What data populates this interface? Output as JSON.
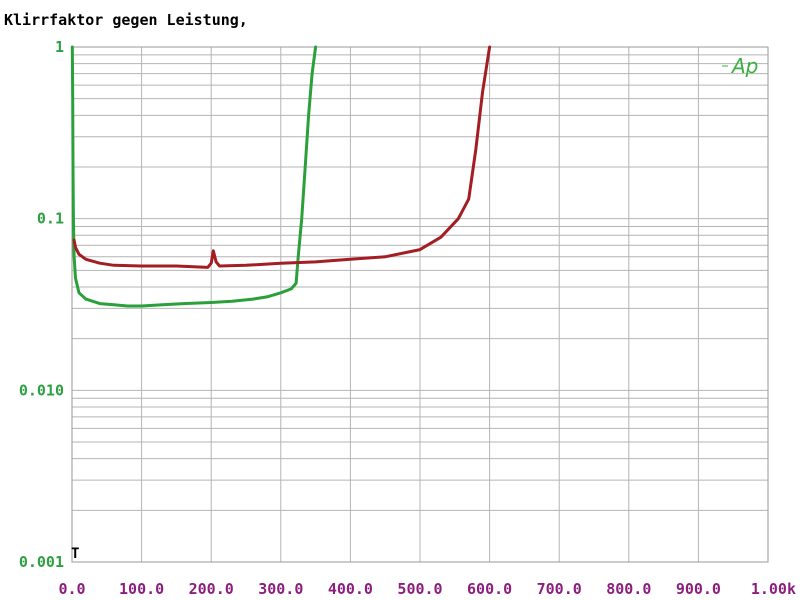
{
  "chart_data": {
    "type": "line",
    "title": "Klirrfaktor gegen Leistung,",
    "logo": "Ap",
    "marker": "T",
    "x_scale": "linear",
    "y_scale": "log",
    "xlim": [
      0,
      1000
    ],
    "ylim": [
      0.001,
      1
    ],
    "grid": true,
    "x_ticks": [
      0,
      100,
      200,
      300,
      400,
      500,
      600,
      700,
      800,
      900,
      1000
    ],
    "x_tick_labels": [
      "0.0",
      "100.0",
      "200.0",
      "300.0",
      "400.0",
      "500.0",
      "600.0",
      "700.0",
      "800.0",
      "900.0",
      "1.00k"
    ],
    "y_ticks": [
      1,
      0.1,
      0.01,
      0.001
    ],
    "y_tick_labels": [
      "1",
      "0.1",
      "0.010",
      "0.001"
    ],
    "colors": {
      "x_tick_text": "#8b1f7e",
      "y_tick_text": "#2ea043",
      "logo": "#3cb043",
      "grid": "#b4b4b4",
      "frame": "#9a9a9a"
    },
    "series": [
      {
        "color": "#2aa03a",
        "points": [
          [
            0.5,
            1.0
          ],
          [
            1,
            0.5
          ],
          [
            1.5,
            0.2
          ],
          [
            2,
            0.1
          ],
          [
            3,
            0.06
          ],
          [
            5,
            0.045
          ],
          [
            10,
            0.037
          ],
          [
            20,
            0.034
          ],
          [
            40,
            0.032
          ],
          [
            60,
            0.0315
          ],
          [
            80,
            0.031
          ],
          [
            100,
            0.031
          ],
          [
            130,
            0.0315
          ],
          [
            160,
            0.032
          ],
          [
            200,
            0.0325
          ],
          [
            230,
            0.033
          ],
          [
            260,
            0.034
          ],
          [
            280,
            0.035
          ],
          [
            300,
            0.037
          ],
          [
            315,
            0.039
          ],
          [
            322,
            0.042
          ],
          [
            325,
            0.06
          ],
          [
            330,
            0.1
          ],
          [
            335,
            0.2
          ],
          [
            340,
            0.4
          ],
          [
            345,
            0.7
          ],
          [
            350,
            1.0
          ]
        ]
      },
      {
        "color": "#a31e22",
        "points": [
          [
            3,
            0.075
          ],
          [
            5,
            0.068
          ],
          [
            10,
            0.062
          ],
          [
            20,
            0.058
          ],
          [
            40,
            0.055
          ],
          [
            60,
            0.0535
          ],
          [
            100,
            0.053
          ],
          [
            150,
            0.053
          ],
          [
            195,
            0.052
          ],
          [
            200,
            0.055
          ],
          [
            203,
            0.065
          ],
          [
            207,
            0.056
          ],
          [
            212,
            0.053
          ],
          [
            250,
            0.0535
          ],
          [
            300,
            0.055
          ],
          [
            350,
            0.056
          ],
          [
            400,
            0.058
          ],
          [
            450,
            0.06
          ],
          [
            500,
            0.066
          ],
          [
            530,
            0.078
          ],
          [
            555,
            0.1
          ],
          [
            570,
            0.13
          ],
          [
            580,
            0.25
          ],
          [
            590,
            0.55
          ],
          [
            600,
            1.0
          ]
        ]
      }
    ]
  }
}
